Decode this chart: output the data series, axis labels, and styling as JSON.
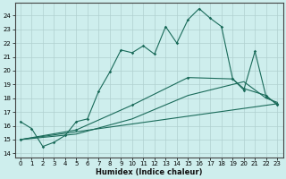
{
  "xlabel": "Humidex (Indice chaleur)",
  "background_color": "#ceeeed",
  "grid_color": "#b0d0d0",
  "line_color": "#1a6b5a",
  "xlim": [
    -0.5,
    23.5
  ],
  "ylim": [
    13.7,
    24.9
  ],
  "yticks": [
    14,
    15,
    16,
    17,
    18,
    19,
    20,
    21,
    22,
    23,
    24
  ],
  "xticks": [
    0,
    1,
    2,
    3,
    4,
    5,
    6,
    7,
    8,
    9,
    10,
    11,
    12,
    13,
    14,
    15,
    16,
    17,
    18,
    19,
    20,
    21,
    22,
    23
  ],
  "line1_x": [
    0,
    1,
    2,
    3,
    4,
    5,
    6,
    7,
    8,
    9,
    10,
    11,
    12,
    13,
    14,
    15,
    16,
    17,
    18,
    19,
    20,
    21,
    22,
    23
  ],
  "line1_y": [
    16.3,
    15.8,
    14.5,
    14.8,
    15.3,
    16.3,
    16.5,
    18.5,
    19.9,
    21.5,
    21.3,
    21.8,
    21.2,
    23.2,
    22.0,
    23.7,
    24.5,
    23.8,
    23.2,
    19.4,
    18.6,
    21.4,
    18.1,
    17.6
  ],
  "line2_x": [
    0,
    5,
    10,
    15,
    19,
    20,
    22,
    23
  ],
  "line2_y": [
    15.0,
    15.7,
    17.5,
    19.5,
    19.4,
    18.7,
    18.2,
    17.5
  ],
  "line3_x": [
    0,
    5,
    10,
    15,
    20,
    22,
    23
  ],
  "line3_y": [
    15.0,
    15.4,
    16.5,
    18.2,
    19.2,
    18.0,
    17.7
  ],
  "line4_x": [
    0,
    23
  ],
  "line4_y": [
    15.0,
    17.6
  ]
}
